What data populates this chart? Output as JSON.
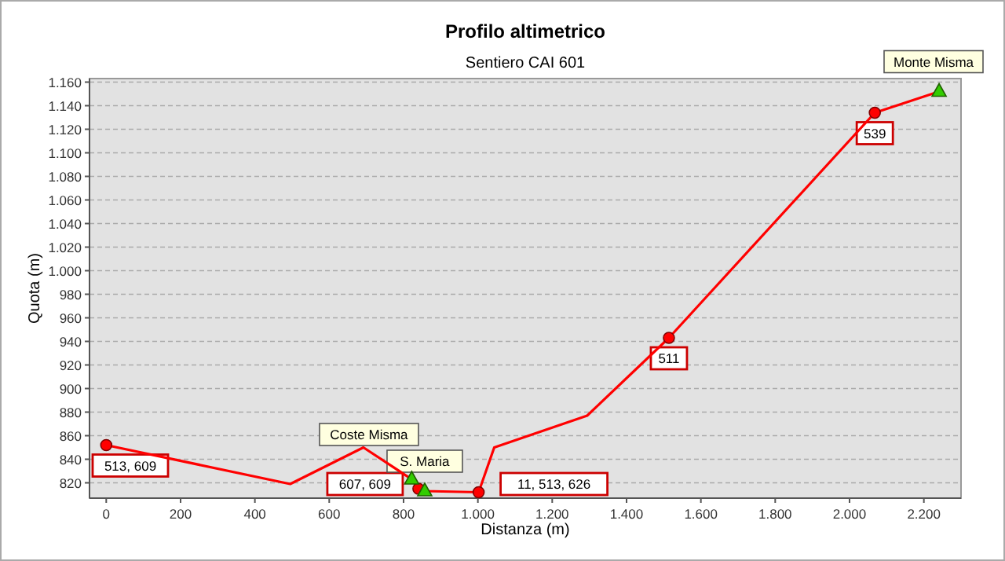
{
  "chart_data": {
    "type": "line",
    "title": "Profilo altimetrico",
    "subtitle": "Sentiero CAI 601",
    "xlabel": "Distanza (m)",
    "ylabel": "Quota (m)",
    "xlim": [
      -45,
      2300
    ],
    "ylim": [
      807,
      1163
    ],
    "xticks": [
      0,
      200,
      400,
      600,
      800,
      {
        "value": 1000,
        "label": "1.000"
      },
      {
        "value": 1200,
        "label": "1.200"
      },
      {
        "value": 1400,
        "label": "1.400"
      },
      {
        "value": 1600,
        "label": "1.600"
      },
      {
        "value": 1800,
        "label": "1.800"
      },
      {
        "value": 2000,
        "label": "2.000"
      },
      {
        "value": 2200,
        "label": "2.200"
      }
    ],
    "yticks": [
      820,
      840,
      860,
      880,
      900,
      920,
      940,
      960,
      980,
      {
        "value": 1000,
        "label": "1.000"
      },
      {
        "value": 1020,
        "label": "1.020"
      },
      {
        "value": 1040,
        "label": "1.040"
      },
      {
        "value": 1060,
        "label": "1.060"
      },
      {
        "value": 1080,
        "label": "1.080"
      },
      {
        "value": 1100,
        "label": "1.100"
      },
      {
        "value": 1120,
        "label": "1.120"
      },
      {
        "value": 1140,
        "label": "1.140"
      },
      {
        "value": 1160,
        "label": "1.160"
      }
    ],
    "grid": "y",
    "legend": false,
    "series": [
      {
        "type": "line",
        "color": "#ff0000",
        "marker": "none",
        "x": [
          0,
          495,
          692,
          822,
          840,
          857,
          1002,
          1044,
          1294,
          1514,
          2068,
          2241
        ],
        "values": [
          852,
          819,
          850,
          823,
          815,
          813,
          812,
          850,
          877,
          943,
          1134,
          1152
        ]
      },
      {
        "type": "scatter",
        "color": "#ff0000",
        "marker": "circle",
        "x": [
          0,
          840,
          1002,
          1514,
          2068
        ],
        "values": [
          852,
          815,
          812,
          943,
          1134
        ]
      },
      {
        "type": "scatter",
        "color": "#33cc00",
        "marker": "triangle",
        "x": [
          822,
          857,
          2241
        ],
        "values": [
          823,
          813,
          1152
        ]
      }
    ],
    "annotations": [
      {
        "text": "513, 609",
        "x": 0,
        "y": 852
      },
      {
        "text": "607, 609",
        "x": 840,
        "y": 815
      },
      {
        "text": "11, 513, 626",
        "x": 1002,
        "y": 812
      },
      {
        "text": "511",
        "x": 1514,
        "y": 943
      },
      {
        "text": "539",
        "x": 2068,
        "y": 1134
      },
      {
        "text": "Coste Misma",
        "x": 822,
        "y": 823
      },
      {
        "text": "S. Maria",
        "x": 857,
        "y": 813
      },
      {
        "text": "Monte Misma",
        "x": 2241,
        "y": 1152
      }
    ]
  }
}
